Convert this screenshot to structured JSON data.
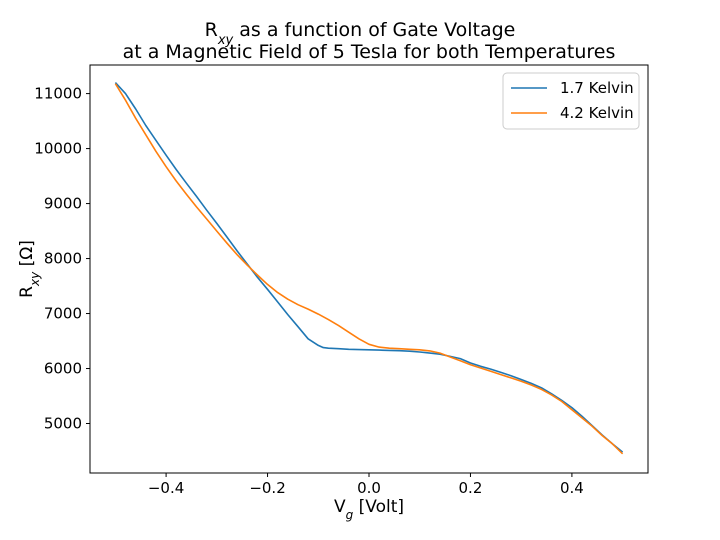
{
  "chart_data": {
    "type": "line",
    "title_line1": "R",
    "title_line1_sub": "xy",
    "title_line1_rest": " as a function of Gate Voltage",
    "title_line2": "at a Magnetic Field of 5 Tesla for both Temperatures",
    "xlabel": "V",
    "xlabel_sub": "g",
    "xlabel_rest": " [Volt]",
    "ylabel": "R",
    "ylabel_sub": "xy",
    "ylabel_rest": " [Ω]",
    "xlim": [
      -0.55,
      0.55
    ],
    "ylim": [
      4100,
      11520
    ],
    "xticks": [
      -0.4,
      -0.2,
      0.0,
      0.2,
      0.4
    ],
    "xtick_labels": [
      "−0.4",
      "−0.2",
      "0.0",
      "0.2",
      "0.4"
    ],
    "yticks": [
      5000,
      6000,
      7000,
      8000,
      9000,
      10000,
      11000
    ],
    "ytick_labels": [
      "5000",
      "6000",
      "7000",
      "8000",
      "9000",
      "10000",
      "11000"
    ],
    "grid": false,
    "legend_position": "top-right",
    "series": [
      {
        "name": "1.7 Kelvin",
        "color": "#1f77b4",
        "x": [
          -0.5,
          -0.48,
          -0.46,
          -0.44,
          -0.42,
          -0.4,
          -0.38,
          -0.36,
          -0.34,
          -0.32,
          -0.3,
          -0.28,
          -0.26,
          -0.24,
          -0.22,
          -0.2,
          -0.18,
          -0.16,
          -0.14,
          -0.12,
          -0.1,
          -0.09,
          -0.08,
          -0.06,
          -0.04,
          -0.02,
          0.0,
          0.02,
          0.04,
          0.06,
          0.08,
          0.1,
          0.12,
          0.14,
          0.16,
          0.18,
          0.2,
          0.22,
          0.24,
          0.26,
          0.28,
          0.3,
          0.32,
          0.34,
          0.36,
          0.38,
          0.4,
          0.42,
          0.44,
          0.46,
          0.48,
          0.5
        ],
        "y": [
          11200,
          11000,
          10720,
          10420,
          10150,
          9880,
          9620,
          9370,
          9130,
          8880,
          8640,
          8390,
          8140,
          7900,
          7660,
          7440,
          7210,
          6980,
          6760,
          6540,
          6420,
          6380,
          6370,
          6360,
          6350,
          6345,
          6340,
          6335,
          6330,
          6325,
          6315,
          6300,
          6280,
          6260,
          6220,
          6180,
          6100,
          6040,
          5990,
          5930,
          5870,
          5800,
          5730,
          5650,
          5540,
          5420,
          5290,
          5130,
          4960,
          4790,
          4630,
          4480
        ]
      },
      {
        "name": "4.2 Kelvin",
        "color": "#ff7f0e",
        "x": [
          -0.5,
          -0.48,
          -0.46,
          -0.44,
          -0.42,
          -0.4,
          -0.38,
          -0.36,
          -0.34,
          -0.32,
          -0.3,
          -0.28,
          -0.26,
          -0.24,
          -0.22,
          -0.2,
          -0.18,
          -0.16,
          -0.14,
          -0.12,
          -0.1,
          -0.08,
          -0.06,
          -0.04,
          -0.02,
          0.0,
          0.02,
          0.04,
          0.06,
          0.08,
          0.1,
          0.12,
          0.14,
          0.16,
          0.18,
          0.2,
          0.22,
          0.24,
          0.26,
          0.28,
          0.3,
          0.32,
          0.34,
          0.36,
          0.38,
          0.4,
          0.42,
          0.44,
          0.46,
          0.48,
          0.5
        ],
        "y": [
          11180,
          10880,
          10550,
          10250,
          9950,
          9670,
          9410,
          9170,
          8940,
          8720,
          8500,
          8280,
          8070,
          7880,
          7700,
          7530,
          7380,
          7260,
          7160,
          7080,
          6990,
          6890,
          6780,
          6660,
          6540,
          6440,
          6390,
          6370,
          6360,
          6350,
          6340,
          6320,
          6280,
          6210,
          6140,
          6070,
          6010,
          5950,
          5890,
          5830,
          5770,
          5700,
          5620,
          5520,
          5400,
          5250,
          5100,
          4950,
          4780,
          4630,
          4450
        ]
      }
    ]
  }
}
